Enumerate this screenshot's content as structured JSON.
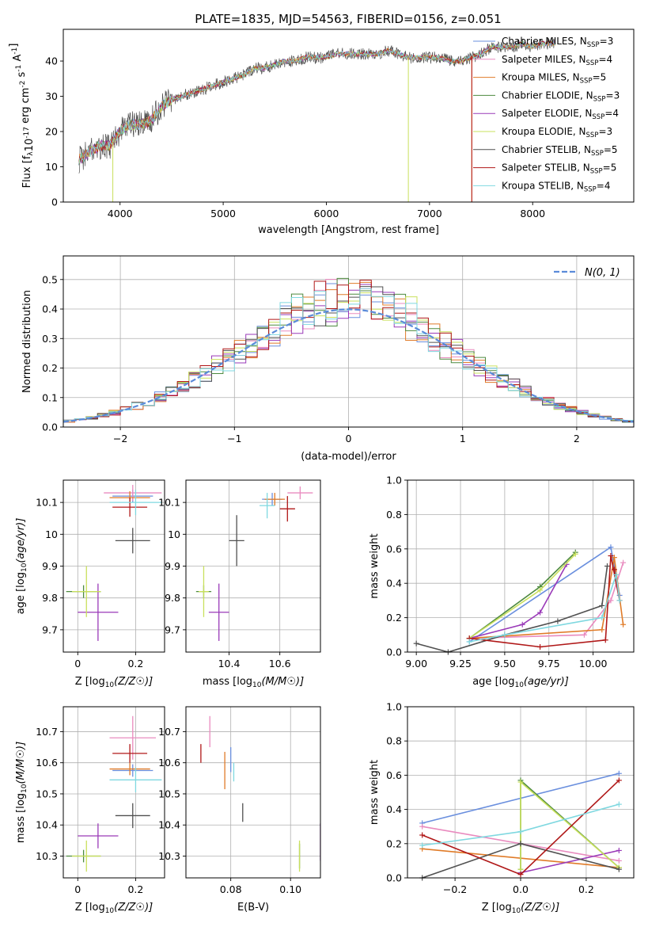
{
  "title": "PLATE=1835, MJD=54563, FIBERID=0156, z=0.051",
  "models": [
    {
      "name": "Chabrier MILES, N_SSP=3",
      "label_main": "Chabrier MILES, N",
      "label_end": "=3",
      "color": "#6a8fde"
    },
    {
      "name": "Salpeter MILES, N_SSP=4",
      "label_main": "Salpeter MILES, N",
      "label_end": "=4",
      "color": "#e98bbf"
    },
    {
      "name": "Kroupa MILES, N_SSP=5",
      "label_main": "Kroupa MILES, N",
      "label_end": "=5",
      "color": "#e07b28"
    },
    {
      "name": "Chabrier ELODIE, N_SSP=3",
      "label_main": "Chabrier ELODIE, N",
      "label_end": "=3",
      "color": "#4d8a3f"
    },
    {
      "name": "Salpeter ELODIE, N_SSP=4",
      "label_main": "Salpeter ELODIE, N",
      "label_end": "=4",
      "color": "#9a3ab8"
    },
    {
      "name": "Kroupa ELODIE, N_SSP=3",
      "label_main": "Kroupa ELODIE, N",
      "label_end": "=3",
      "color": "#c9e05c"
    },
    {
      "name": "Chabrier STELIB, N_SSP=5",
      "label_main": "Chabrier STELIB, N",
      "label_end": "=5",
      "color": "#505050"
    },
    {
      "name": "Salpeter STELIB, N_SSP=5",
      "label_main": "Salpeter STELIB, N",
      "label_end": "=5",
      "color": "#b01818"
    },
    {
      "name": "Kroupa STELIB, N_SSP=4",
      "label_main": "Kroupa STELIB, N",
      "label_end": "=4",
      "color": "#7fd8e0"
    }
  ],
  "chart_data": [
    {
      "id": "spectrum",
      "type": "line",
      "xlabel": "wavelength [Angstrom, rest frame]",
      "ylabel_main": "Flux [f",
      "ylabel_sub": "λ",
      "ylabel_rest": "10",
      "ylabel_exp1": "-17",
      "ylabel_unit": " erg cm",
      "ylabel_exp2": "-2",
      "ylabel_s": " s",
      "ylabel_exp3": "-1",
      "ylabel_A": " A",
      "ylabel_exp4": "-1",
      "ylabel_close": "]",
      "xlim": [
        3450,
        8980
      ],
      "ylim": [
        0,
        49
      ],
      "xticks": [
        4000,
        5000,
        6000,
        7000,
        8000
      ],
      "yticks": [
        0,
        10,
        20,
        30,
        40
      ],
      "sub_label": "SSP",
      "continuum": [
        [
          3600,
          12
        ],
        [
          3700,
          14
        ],
        [
          3800,
          16
        ],
        [
          3900,
          16
        ],
        [
          4000,
          20
        ],
        [
          4100,
          22
        ],
        [
          4200,
          22
        ],
        [
          4300,
          23
        ],
        [
          4400,
          27
        ],
        [
          4500,
          29
        ],
        [
          4600,
          30
        ],
        [
          4700,
          31
        ],
        [
          4800,
          32
        ],
        [
          4900,
          33
        ],
        [
          5000,
          34
        ],
        [
          5100,
          35
        ],
        [
          5200,
          36
        ],
        [
          5300,
          38
        ],
        [
          5400,
          38
        ],
        [
          5500,
          39
        ],
        [
          5600,
          40
        ],
        [
          5700,
          40
        ],
        [
          5800,
          41
        ],
        [
          5900,
          41
        ],
        [
          6000,
          41
        ],
        [
          6100,
          42
        ],
        [
          6200,
          42
        ],
        [
          6300,
          42
        ],
        [
          6400,
          42
        ],
        [
          6500,
          42
        ],
        [
          6600,
          43
        ],
        [
          6700,
          42
        ],
        [
          6800,
          41
        ],
        [
          6900,
          41
        ],
        [
          7000,
          41
        ],
        [
          7100,
          41
        ],
        [
          7200,
          40
        ],
        [
          7300,
          40
        ],
        [
          7400,
          41
        ],
        [
          7500,
          42
        ],
        [
          7600,
          44
        ],
        [
          7700,
          44
        ],
        [
          7800,
          44
        ],
        [
          7900,
          45
        ],
        [
          8000,
          44
        ],
        [
          8100,
          45
        ],
        [
          8200,
          45
        ]
      ]
    },
    {
      "id": "residuals",
      "type": "histogram",
      "xlabel": "(data-model)/error",
      "ylabel": "Normed distribution",
      "xlim": [
        -2.5,
        2.5
      ],
      "ylim": [
        0,
        0.58
      ],
      "xticks": [
        -2,
        -1,
        0,
        1,
        2
      ],
      "yticks": [
        0,
        0.1,
        0.2,
        0.3,
        0.4,
        0.5
      ],
      "ytick_labels": [
        "0.0",
        "0.1",
        "0.2",
        "0.3",
        "0.4",
        "0.5"
      ],
      "xtick_labels": [
        "−2",
        "−1",
        "0",
        "1",
        "2"
      ],
      "legend": "N(0, 1)",
      "bin_width": 0.1
    },
    {
      "id": "age_vs_Z",
      "type": "errorbar",
      "xlabel": "Z [log",
      "ylabel": "age  [log",
      "xlim": [
        -0.05,
        0.3
      ],
      "ylim": [
        9.63,
        10.17
      ],
      "xticks": [
        0.0,
        0.2
      ],
      "yticks": [
        9.7,
        9.8,
        9.9,
        10.0,
        10.1
      ],
      "points": [
        {
          "m": 0,
          "x": 0.19,
          "y": 10.12,
          "dx": 0.07,
          "dy": 0.02
        },
        {
          "m": 1,
          "x": 0.19,
          "y": 10.13,
          "dx": 0.1,
          "dy": 0.025
        },
        {
          "m": 2,
          "x": 0.18,
          "y": 10.115,
          "dx": 0.07,
          "dy": 0.02
        },
        {
          "m": 3,
          "x": 0.02,
          "y": 9.82,
          "dx": 0.06,
          "dy": 0.02
        },
        {
          "m": 4,
          "x": 0.07,
          "y": 9.755,
          "dx": 0.07,
          "dy": 0.09
        },
        {
          "m": 5,
          "x": 0.03,
          "y": 9.82,
          "dx": 0.05,
          "dy": 0.08
        },
        {
          "m": 6,
          "x": 0.19,
          "y": 9.98,
          "dx": 0.06,
          "dy": 0.04
        },
        {
          "m": 7,
          "x": 0.18,
          "y": 10.085,
          "dx": 0.06,
          "dy": 0.03
        },
        {
          "m": 8,
          "x": 0.2,
          "y": 10.1,
          "dx": 0.09,
          "dy": 0.04
        }
      ]
    },
    {
      "id": "age_vs_mass",
      "type": "errorbar",
      "xlabel": "mass [log",
      "ylabel": "",
      "xlim": [
        10.23,
        10.76
      ],
      "ylim": [
        9.63,
        10.17
      ],
      "xticks": [
        10.4,
        10.6
      ],
      "yticks": [
        9.7,
        9.8,
        9.9,
        10.0,
        10.1
      ],
      "points": [
        {
          "m": 0,
          "x": 10.57,
          "y": 10.11,
          "dx": 0.04,
          "dy": 0.02
        },
        {
          "m": 1,
          "x": 10.68,
          "y": 10.13,
          "dx": 0.05,
          "dy": 0.02
        },
        {
          "m": 2,
          "x": 10.58,
          "y": 10.11,
          "dx": 0.04,
          "dy": 0.02
        },
        {
          "m": 3,
          "x": 10.3,
          "y": 9.82,
          "dx": 0.03,
          "dy": 0.02
        },
        {
          "m": 4,
          "x": 10.36,
          "y": 9.755,
          "dx": 0.04,
          "dy": 0.09
        },
        {
          "m": 5,
          "x": 10.3,
          "y": 9.82,
          "dx": 0.02,
          "dy": 0.08
        },
        {
          "m": 6,
          "x": 10.43,
          "y": 9.98,
          "dx": 0.03,
          "dy": 0.08
        },
        {
          "m": 7,
          "x": 10.63,
          "y": 10.08,
          "dx": 0.03,
          "dy": 0.04
        },
        {
          "m": 8,
          "x": 10.55,
          "y": 10.09,
          "dx": 0.03,
          "dy": 0.04
        }
      ]
    },
    {
      "id": "massweight_vs_age",
      "type": "line",
      "xlabel": "age  [log",
      "ylabel": "mass weight",
      "xlim": [
        8.95,
        10.23
      ],
      "ylim": [
        0,
        1.0
      ],
      "xticks": [
        9.0,
        9.25,
        9.5,
        9.75,
        10.0
      ],
      "yticks": [
        0,
        0.2,
        0.4,
        0.6,
        0.8,
        1.0
      ],
      "xtick_labels": [
        "9.00",
        "9.25",
        "9.50",
        "9.75",
        "10.00"
      ],
      "ytick_labels": [
        "0.0",
        "0.2",
        "0.4",
        "0.6",
        "0.8",
        "1.0"
      ],
      "series": [
        {
          "m": 0,
          "x": [
            9.3,
            10.1,
            10.15
          ],
          "y": [
            0.06,
            0.61,
            0.33
          ]
        },
        {
          "m": 1,
          "x": [
            9.3,
            9.95,
            10.1,
            10.17
          ],
          "y": [
            0.08,
            0.1,
            0.3,
            0.52
          ]
        },
        {
          "m": 2,
          "x": [
            9.3,
            10.05,
            10.12,
            10.17
          ],
          "y": [
            0.08,
            0.13,
            0.55,
            0.16
          ]
        },
        {
          "m": 3,
          "x": [
            9.3,
            9.7,
            9.9
          ],
          "y": [
            0.08,
            0.38,
            0.58
          ]
        },
        {
          "m": 4,
          "x": [
            9.3,
            9.6,
            9.7,
            9.85
          ],
          "y": [
            0.08,
            0.16,
            0.23,
            0.51
          ]
        },
        {
          "m": 5,
          "x": [
            9.3,
            9.7,
            9.9
          ],
          "y": [
            0.08,
            0.36,
            0.57
          ]
        },
        {
          "m": 6,
          "x": [
            9.0,
            9.18,
            9.5,
            9.8,
            10.05,
            10.08
          ],
          "y": [
            0.05,
            0.0,
            0.1,
            0.18,
            0.27,
            0.5
          ]
        },
        {
          "m": 7,
          "x": [
            9.3,
            9.7,
            10.07,
            10.1,
            10.15,
            10.12
          ],
          "y": [
            0.08,
            0.03,
            0.07,
            0.56,
            0.3,
            0.48
          ]
        },
        {
          "m": 8,
          "x": [
            9.3,
            9.5,
            10.05,
            10.13,
            10.15
          ],
          "y": [
            0.06,
            0.1,
            0.2,
            0.45,
            0.3
          ]
        }
      ]
    },
    {
      "id": "mass_vs_Z",
      "type": "errorbar",
      "xlabel": "Z [log",
      "ylabel": "mass [log",
      "xlim": [
        -0.05,
        0.3
      ],
      "ylim": [
        10.23,
        10.78
      ],
      "xticks": [
        0.0,
        0.2
      ],
      "yticks": [
        10.3,
        10.4,
        10.5,
        10.6,
        10.7
      ],
      "points": [
        {
          "m": 0,
          "x": 0.19,
          "y": 10.575,
          "dx": 0.07,
          "dy": 0.02
        },
        {
          "m": 1,
          "x": 0.19,
          "y": 10.68,
          "dx": 0.08,
          "dy": 0.07
        },
        {
          "m": 2,
          "x": 0.18,
          "y": 10.58,
          "dx": 0.07,
          "dy": 0.02
        },
        {
          "m": 3,
          "x": 0.02,
          "y": 10.3,
          "dx": 0.06,
          "dy": 0.02
        },
        {
          "m": 4,
          "x": 0.07,
          "y": 10.365,
          "dx": 0.07,
          "dy": 0.04
        },
        {
          "m": 5,
          "x": 0.03,
          "y": 10.3,
          "dx": 0.05,
          "dy": 0.05
        },
        {
          "m": 6,
          "x": 0.19,
          "y": 10.43,
          "dx": 0.06,
          "dy": 0.04
        },
        {
          "m": 7,
          "x": 0.18,
          "y": 10.63,
          "dx": 0.06,
          "dy": 0.03
        },
        {
          "m": 8,
          "x": 0.2,
          "y": 10.545,
          "dx": 0.09,
          "dy": 0.04
        }
      ]
    },
    {
      "id": "mass_vs_EBV",
      "type": "errorbar",
      "xlabel": "E(B-V)",
      "ylabel": "",
      "xlim": [
        0.065,
        0.11
      ],
      "ylim": [
        10.23,
        10.78
      ],
      "xticks": [
        0.08,
        0.1
      ],
      "yticks": [
        10.3,
        10.4,
        10.5,
        10.6,
        10.7
      ],
      "xtick_labels": [
        "0.08",
        "0.10"
      ],
      "points": [
        {
          "m": 0,
          "x": 0.08,
          "y": 10.61,
          "dx": 0,
          "dy": 0.04
        },
        {
          "m": 1,
          "x": 0.073,
          "y": 10.7,
          "dx": 0,
          "dy": 0.05
        },
        {
          "m": 2,
          "x": 0.078,
          "y": 10.575,
          "dx": 0,
          "dy": 0.06
        },
        {
          "m": 3,
          "x": 0.103,
          "y": 10.3,
          "dx": 0,
          "dy": 0.04
        },
        {
          "m": 4,
          "x": 0.11,
          "y": 10.345,
          "dx": 0,
          "dy": 0.06
        },
        {
          "m": 5,
          "x": 0.103,
          "y": 10.3,
          "dx": 0,
          "dy": 0.05
        },
        {
          "m": 6,
          "x": 0.084,
          "y": 10.44,
          "dx": 0,
          "dy": 0.03
        },
        {
          "m": 7,
          "x": 0.07,
          "y": 10.63,
          "dx": 0,
          "dy": 0.03
        },
        {
          "m": 8,
          "x": 0.081,
          "y": 10.57,
          "dx": 0,
          "dy": 0.03
        }
      ]
    },
    {
      "id": "massweight_vs_Z",
      "type": "line",
      "xlabel": "Z [log",
      "ylabel": "mass weight",
      "xlim": [
        -0.345,
        0.345
      ],
      "ylim": [
        0,
        1.0
      ],
      "xticks": [
        -0.2,
        0.0,
        0.2
      ],
      "yticks": [
        0,
        0.2,
        0.4,
        0.6,
        0.8,
        1.0
      ],
      "xtick_labels": [
        "−0.2",
        "0.0",
        "0.2"
      ],
      "ytick_labels": [
        "0.0",
        "0.2",
        "0.4",
        "0.6",
        "0.8",
        "1.0"
      ],
      "series": [
        {
          "m": 0,
          "x": [
            -0.3,
            0.3
          ],
          "y": [
            0.32,
            0.61
          ]
        },
        {
          "m": 1,
          "x": [
            -0.3,
            0.3
          ],
          "y": [
            0.3,
            0.1
          ]
        },
        {
          "m": 2,
          "x": [
            -0.3,
            0.3
          ],
          "y": [
            0.17,
            0.06
          ]
        },
        {
          "m": 3,
          "x": [
            0.0,
            0.0,
            0.3
          ],
          "y": [
            0.05,
            0.57,
            0.06
          ]
        },
        {
          "m": 4,
          "x": [
            0.0,
            0.3
          ],
          "y": [
            0.03,
            0.16
          ]
        },
        {
          "m": 5,
          "x": [
            0.0,
            0.0,
            0.3
          ],
          "y": [
            0.05,
            0.56,
            0.06
          ]
        },
        {
          "m": 6,
          "x": [
            -0.3,
            0.0,
            0.3
          ],
          "y": [
            0.0,
            0.2,
            0.05
          ]
        },
        {
          "m": 7,
          "x": [
            -0.3,
            0.0,
            0.3
          ],
          "y": [
            0.25,
            0.02,
            0.57
          ]
        },
        {
          "m": 8,
          "x": [
            -0.3,
            0.0,
            0.3
          ],
          "y": [
            0.19,
            0.27,
            0.43
          ]
        }
      ]
    }
  ]
}
